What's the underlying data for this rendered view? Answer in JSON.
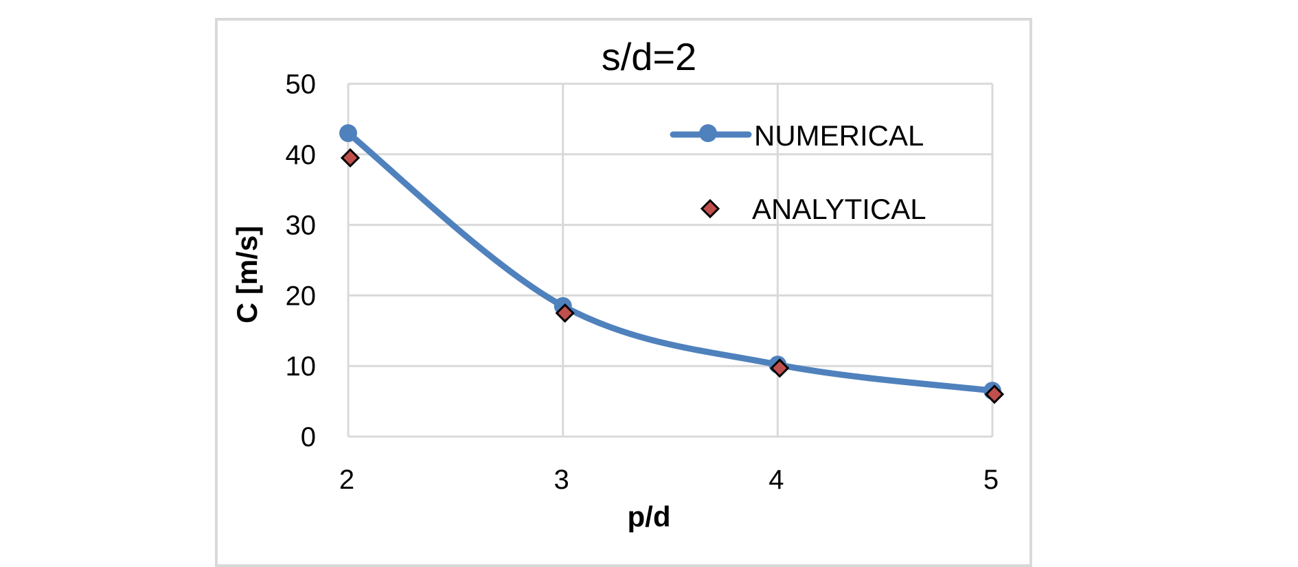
{
  "chart_data": {
    "type": "line",
    "title": "s/d=2",
    "xlabel": "p/d",
    "ylabel": "C [m/s]",
    "x": [
      2,
      3,
      4,
      5
    ],
    "xlim": [
      2,
      5
    ],
    "ylim": [
      0,
      50
    ],
    "x_ticks": [
      "2",
      "3",
      "4",
      "5"
    ],
    "y_ticks": [
      "0",
      "10",
      "20",
      "30",
      "40",
      "50"
    ],
    "grid": true,
    "legend_position": "top-right",
    "series": [
      {
        "name": "NUMERICAL",
        "style": "smooth-line-with-circle-markers",
        "color": "#4f81bd",
        "values": [
          43,
          18.5,
          10.2,
          6.5
        ]
      },
      {
        "name": "ANALYTICAL",
        "style": "diamond-markers",
        "color": "#c0504d",
        "values": [
          39.5,
          17.5,
          9.7,
          6
        ]
      }
    ]
  }
}
